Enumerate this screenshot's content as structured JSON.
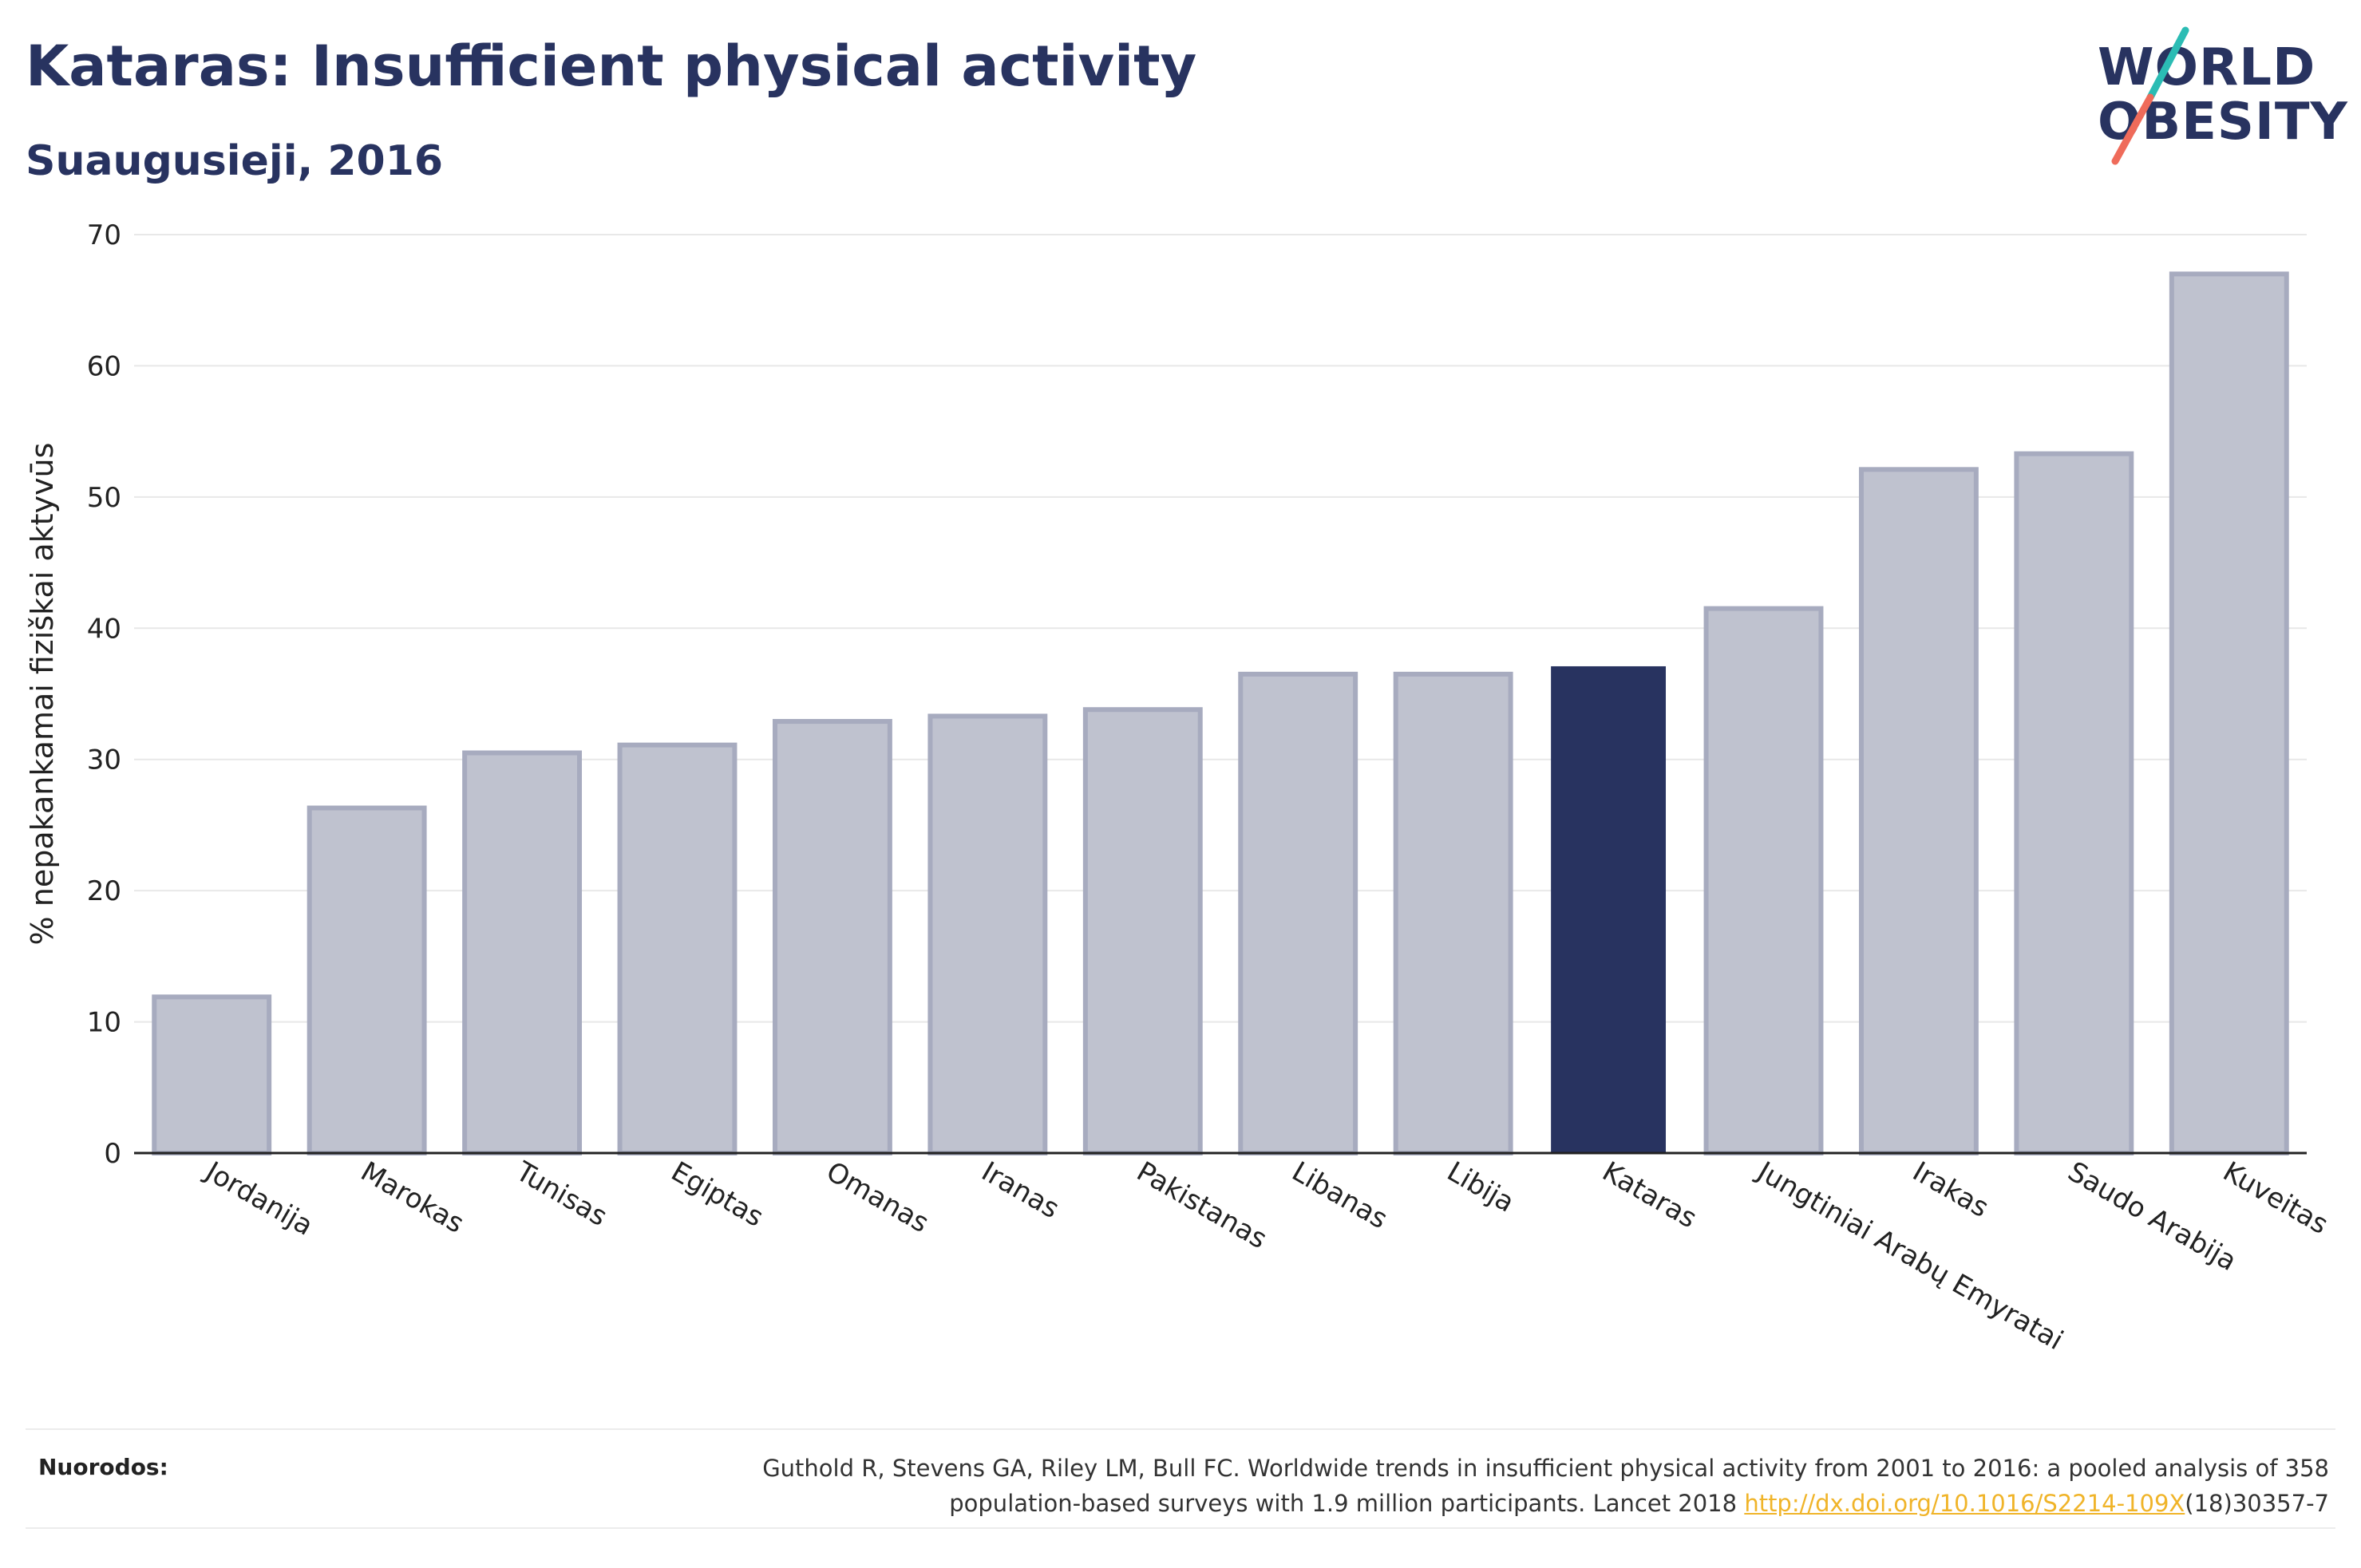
{
  "header": {
    "title": "Kataras: Insufficient physical activity",
    "subtitle": "Suaugusieji, 2016"
  },
  "logo": {
    "line1": "WORLD",
    "line2": "OBESITY",
    "accent_colors": [
      "#2bbcb4",
      "#ef6b5a"
    ]
  },
  "colors": {
    "bar": "#283360",
    "bar_muted": "#bfc2cf",
    "bar_muted_edge": "#a7abbf",
    "grid": "#e8e8e8",
    "axis": "#222222",
    "link": "#f0b429"
  },
  "chart_data": {
    "type": "bar",
    "title": "Kataras: Insufficient physical activity",
    "subtitle": "Suaugusieji, 2016",
    "ylabel": "% nepakankamai fiziškai aktyvūs",
    "ylim": [
      0,
      70
    ],
    "yticks": [
      0,
      10,
      20,
      30,
      40,
      50,
      60,
      70
    ],
    "grid": true,
    "highlight": "Kataras",
    "categories": [
      "Jordanija",
      "Marokas",
      "Tunisas",
      "Egiptas",
      "Omanas",
      "Iranas",
      "Pakistanas",
      "Libanas",
      "Libija",
      "Kataras",
      "Jungtiniai Arabų Emyratai",
      "Irakas",
      "Saudo Arabija",
      "Kuveitas"
    ],
    "values": [
      11.9,
      26.3,
      30.5,
      31.1,
      32.9,
      33.3,
      33.8,
      36.5,
      36.5,
      37.1,
      41.5,
      52.1,
      53.3,
      67.0
    ]
  },
  "footer": {
    "refs_label": "Nuorodos:",
    "ref_line1": "Guthold R, Stevens GA, Riley LM, Bull FC. Worldwide trends in insufficient physical activity from 2001 to 2016: a pooled analysis of 358",
    "ref_line2_pre": "population-based surveys with 1.9 million participants. Lancet 2018 ",
    "ref_link": "http://dx.doi.org/10.1016/S2214-109X",
    "ref_line2_post": "(18)30357-7"
  }
}
